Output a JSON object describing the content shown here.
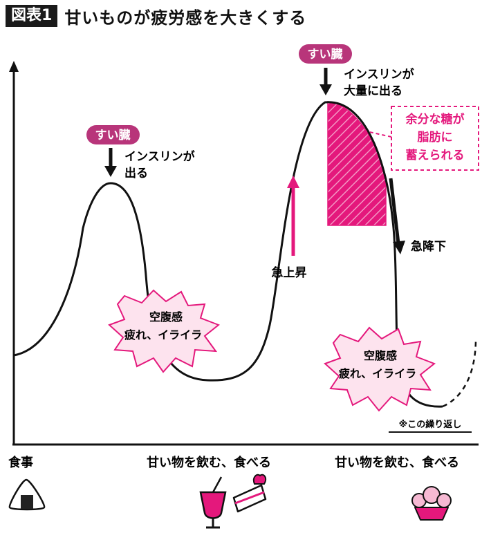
{
  "title": {
    "badge": "図表1",
    "text": "甘いものが疲労感を大きくする"
  },
  "pancreas_1": {
    "badge": "すい臓",
    "line1": "インスリンが",
    "line2": "出る"
  },
  "pancreas_2": {
    "badge": "すい臓",
    "line1": "インスリンが",
    "line2": "大量に出る"
  },
  "excess_sugar": {
    "line1": "余分な糖が",
    "line2": "脂肪に",
    "line3": "蓄えられる"
  },
  "rapid_rise": "急上昇",
  "rapid_fall": "急降下",
  "hunger_1": {
    "line1": "空腹感",
    "line2": "疲れ、イライラ"
  },
  "hunger_2": {
    "line1": "空腹感",
    "line2": "疲れ、イライラ"
  },
  "repeat_note": "※この繰り返し",
  "x_labels": {
    "meal": "食事",
    "sweets_1": "甘い物を飲む、食べる",
    "sweets_2": "甘い物を飲む、食べる"
  },
  "icons": [
    "onigiri-icon",
    "juice-glass-icon",
    "strawberry-cake-icon",
    "cupcake-icon"
  ],
  "colors": {
    "accent": "#e4187c",
    "badge": "#b8357a",
    "burst_fill": "#fde3ee",
    "ink": "#111111"
  }
}
